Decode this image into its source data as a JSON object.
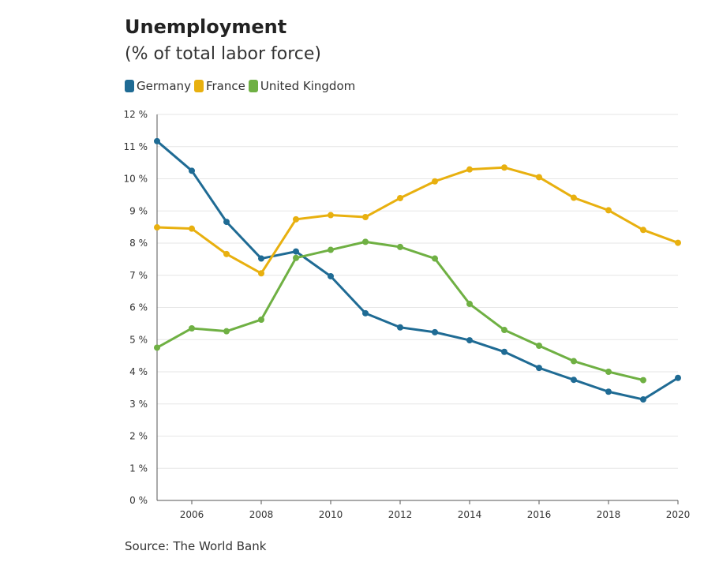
{
  "title": "Unemployment",
  "subtitle": "(% of total labor force)",
  "source": "Source: The World Bank",
  "chart_data": {
    "type": "line",
    "x": [
      2005,
      2006,
      2007,
      2008,
      2009,
      2010,
      2011,
      2012,
      2013,
      2014,
      2015,
      2016,
      2017,
      2018,
      2019,
      2020
    ],
    "xticks": [
      2006,
      2008,
      2010,
      2012,
      2014,
      2016,
      2018,
      2020
    ],
    "yticks": [
      0,
      1,
      2,
      3,
      4,
      5,
      6,
      7,
      8,
      9,
      10,
      11,
      12
    ],
    "ylim": [
      0,
      12
    ],
    "xlim": [
      2005,
      2020
    ],
    "y_tick_suffix": " %",
    "grid": "horizontal",
    "legend": "top-left",
    "series": [
      {
        "name": "Germany",
        "color": "#1f6b94",
        "values": [
          11.17,
          10.25,
          8.66,
          7.52,
          7.74,
          6.97,
          5.82,
          5.38,
          5.23,
          4.98,
          4.62,
          4.12,
          3.75,
          3.38,
          3.14,
          3.81
        ]
      },
      {
        "name": "France",
        "color": "#e8b00f",
        "values": [
          8.49,
          8.45,
          7.66,
          7.06,
          8.74,
          8.87,
          8.81,
          9.4,
          9.92,
          10.29,
          10.35,
          10.05,
          9.41,
          9.02,
          8.41,
          8.01
        ]
      },
      {
        "name": "United Kingdom",
        "color": "#6fb043",
        "values": [
          4.75,
          5.35,
          5.26,
          5.62,
          7.54,
          7.79,
          8.04,
          7.88,
          7.52,
          6.11,
          5.3,
          4.81,
          4.33,
          4.0,
          3.74,
          null
        ]
      }
    ]
  }
}
